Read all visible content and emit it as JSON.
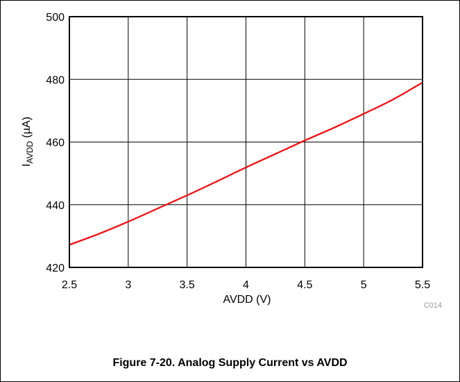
{
  "chart_data": {
    "type": "line",
    "title": "",
    "xlabel": "AVDD (V)",
    "ylabel_main": "I",
    "ylabel_sub": "AVDD",
    "ylabel_unit": " (µA)",
    "xlim": [
      2.5,
      5.5
    ],
    "ylim": [
      420,
      500
    ],
    "xticks": [
      2.5,
      3,
      3.5,
      4,
      4.5,
      5,
      5.5
    ],
    "xtick_labels": [
      "2.5",
      "3",
      "3.5",
      "4",
      "4.5",
      "5",
      "5.5"
    ],
    "yticks": [
      420,
      440,
      460,
      480,
      500
    ],
    "ytick_labels": [
      "420",
      "440",
      "460",
      "480",
      "500"
    ],
    "grid": true,
    "series": [
      {
        "color": "#e8191b",
        "x": [
          2.5,
          2.75,
          3.0,
          3.25,
          3.5,
          3.75,
          4.0,
          4.25,
          4.5,
          4.75,
          5.0,
          5.25,
          5.5
        ],
        "y": [
          427.2,
          430.7,
          434.6,
          438.8,
          443.0,
          447.4,
          451.9,
          456.2,
          460.5,
          464.6,
          469.0,
          473.6,
          479.0
        ]
      }
    ],
    "code_label": "C014"
  },
  "caption": "Figure 7-20. Analog Supply Current vs AVDD"
}
